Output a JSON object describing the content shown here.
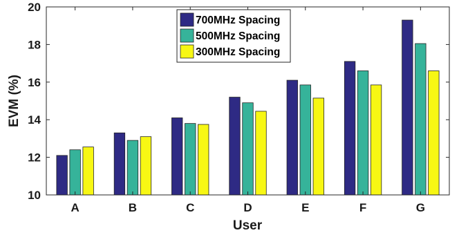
{
  "chart_data": {
    "type": "bar",
    "title": "",
    "xlabel": "User",
    "ylabel": "EVM (%)",
    "categories": [
      "A",
      "B",
      "C",
      "D",
      "E",
      "F",
      "G"
    ],
    "ylim": [
      10,
      20
    ],
    "yticks": [
      10,
      12,
      14,
      16,
      18,
      20
    ],
    "grid": false,
    "legend_position": "top-center",
    "series": [
      {
        "name": "700MHz Spacing",
        "color": "#2e2a84",
        "values": [
          12.1,
          13.3,
          14.1,
          15.2,
          16.1,
          17.1,
          19.3
        ]
      },
      {
        "name": "500MHz Spacing",
        "color": "#36b39a",
        "values": [
          12.4,
          12.9,
          13.8,
          14.9,
          15.85,
          16.6,
          18.05
        ]
      },
      {
        "name": "300MHz Spacing",
        "color": "#f7f714",
        "values": [
          12.55,
          13.1,
          13.75,
          14.45,
          15.15,
          15.85,
          16.6
        ]
      }
    ]
  }
}
